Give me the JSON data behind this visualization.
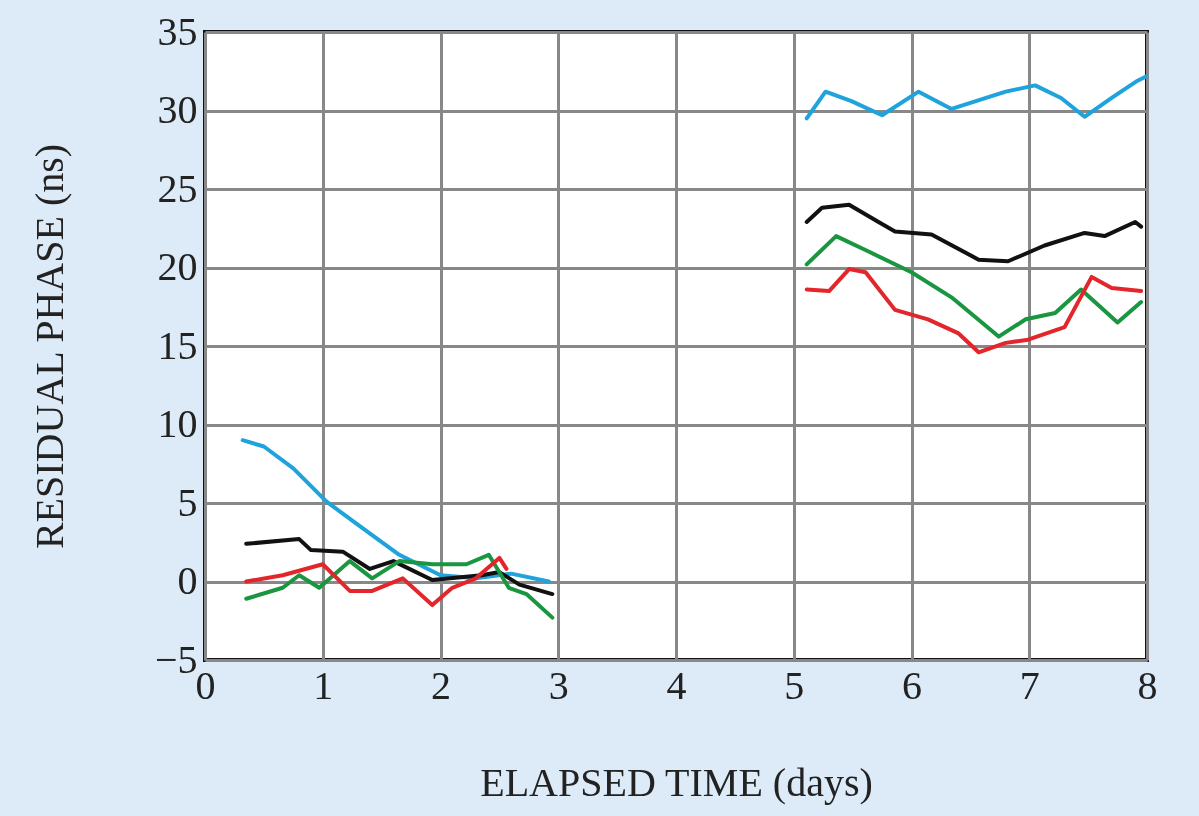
{
  "chart_data": {
    "type": "line",
    "xlabel": "ELAPSED TIME (days)",
    "ylabel": "RESIDUAL PHASE (ns)",
    "xlim": [
      0,
      8
    ],
    "xticks": [
      0,
      1,
      2,
      3,
      4,
      5,
      6,
      7,
      8
    ],
    "ylim": [
      -5,
      35
    ],
    "yticks": [
      -5,
      0,
      5,
      10,
      15,
      20,
      25,
      30,
      35
    ],
    "grid": true,
    "line_style": "solid",
    "series": [
      {
        "color": "#1fa3dc",
        "x": [
          0.32,
          0.5,
          0.75,
          1.03,
          1.3,
          1.65,
          2.0,
          2.3,
          2.6,
          2.92,
          4,
          5.11,
          5.27,
          5.49,
          5.75,
          6.06,
          6.34,
          6.8,
          7.05,
          7.27,
          7.47,
          7.7,
          7.92,
          8.0
        ],
        "values": [
          9.0,
          8.6,
          7.2,
          5.1,
          3.6,
          1.7,
          0.4,
          0.2,
          0.5,
          0,
          null,
          29.5,
          31.2,
          30.6,
          29.7,
          31.2,
          30.1,
          31.2,
          31.6,
          30.8,
          29.6,
          30.8,
          31.9,
          32.2
        ]
      },
      {
        "color": "#111111",
        "x": [
          0.35,
          0.8,
          0.9,
          1.17,
          1.4,
          1.6,
          1.93,
          2.35,
          2.5,
          2.67,
          2.95,
          4,
          5.11,
          5.24,
          5.47,
          5.72,
          5.86,
          6.17,
          6.57,
          6.82,
          7.13,
          7.47,
          7.64,
          7.9,
          7.95
        ],
        "values": [
          2.4,
          2.7,
          2.0,
          1.9,
          0.8,
          1.3,
          0.1,
          0.4,
          0.6,
          -0.2,
          -0.8,
          null,
          22.9,
          23.8,
          24.0,
          22.9,
          22.3,
          22.1,
          20.5,
          20.4,
          21.4,
          22.2,
          22.0,
          22.9,
          22.6
        ]
      },
      {
        "color": "#1a9641",
        "x": [
          0.35,
          0.66,
          0.8,
          0.97,
          1.23,
          1.42,
          1.65,
          1.93,
          2.22,
          2.41,
          2.58,
          2.73,
          2.95,
          4,
          5.11,
          5.36,
          5.64,
          6.0,
          6.34,
          6.74,
          6.97,
          7.22,
          7.44,
          7.75,
          7.95
        ],
        "values": [
          -1.1,
          -0.4,
          0.4,
          -0.4,
          1.3,
          0.2,
          1.3,
          1.1,
          1.1,
          1.7,
          -0.4,
          -0.8,
          -2.3,
          null,
          20.2,
          22.0,
          21.0,
          19.7,
          18.1,
          15.6,
          16.7,
          17.1,
          18.6,
          16.5,
          17.8
        ]
      },
      {
        "color": "#e3262b",
        "x": [
          0.35,
          0.66,
          1.0,
          1.23,
          1.42,
          1.68,
          1.93,
          2.1,
          2.3,
          2.5,
          2.56,
          4,
          5.11,
          5.3,
          5.47,
          5.61,
          5.86,
          6.14,
          6.4,
          6.57,
          6.8,
          6.99,
          7.3,
          7.53,
          7.7,
          7.95
        ],
        "values": [
          0,
          0.4,
          1.1,
          -0.6,
          -0.6,
          0.2,
          -1.5,
          -0.4,
          0.2,
          1.5,
          0.8,
          null,
          18.6,
          18.5,
          19.9,
          19.7,
          17.3,
          16.7,
          15.8,
          14.6,
          15.2,
          15.4,
          16.2,
          19.4,
          18.7,
          18.5
        ]
      }
    ]
  }
}
